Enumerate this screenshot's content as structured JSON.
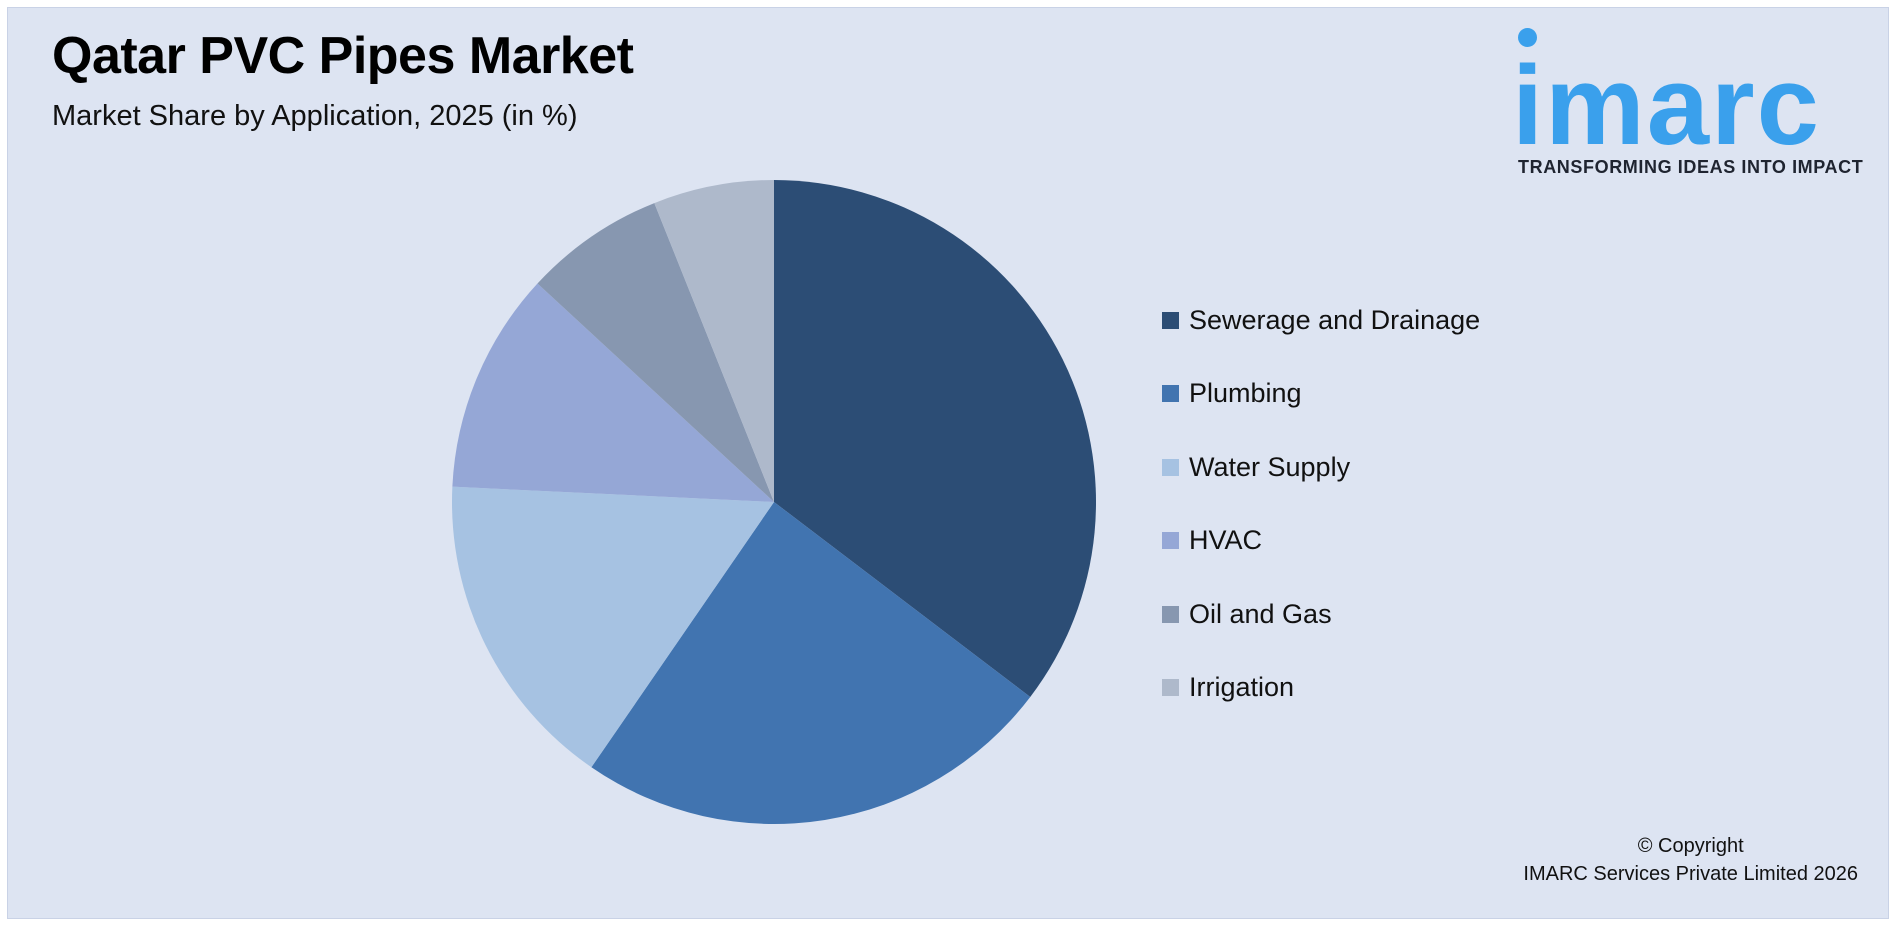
{
  "chart_data": {
    "type": "pie",
    "title": "Qatar PVC Pipes Market",
    "subtitle": "Market Share by Application, 2025 (in %)",
    "categories": [
      "Sewerage and Drainage",
      "Plumbing",
      "Water Supply",
      "HVAC",
      "Oil and Gas",
      "Irrigation"
    ],
    "values": [
      35,
      24,
      16,
      11,
      7,
      6
    ],
    "colors": [
      "#2c4d75",
      "#4174b0",
      "#a6c2e2",
      "#95a7d6",
      "#8797b0",
      "#aeb9cb"
    ],
    "legend_position": "right",
    "start_angle": "12 o'clock",
    "direction": "clockwise"
  },
  "logo": {
    "wordmark": "imarc",
    "tagline": "TRANSFORMING IDEAS INTO IMPACT",
    "color": "#3aa0ec"
  },
  "copyright": {
    "line1": "© Copyright",
    "line2": "IMARC Services Private Limited 2026"
  }
}
